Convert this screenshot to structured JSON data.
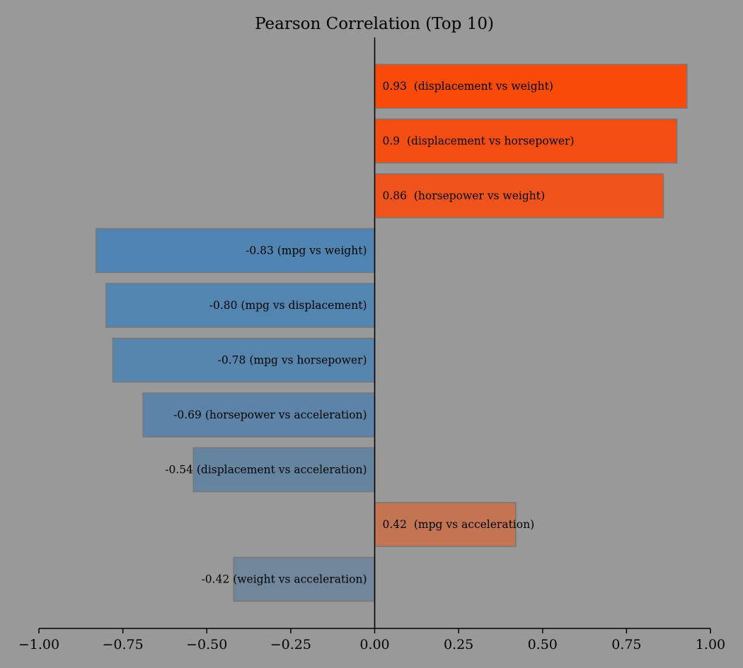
{
  "chart_data": {
    "type": "bar",
    "orientation": "horizontal",
    "title": "Pearson Correlation (Top 10)",
    "xlabel": "",
    "ylabel": "",
    "xlim": [
      -1.0,
      1.0
    ],
    "xticks": [
      -1.0,
      -0.75,
      -0.5,
      -0.25,
      0.0,
      0.25,
      0.5,
      0.75,
      1.0
    ],
    "xtick_labels": [
      "−1.00",
      "−0.75",
      "−0.50",
      "−0.25",
      "0.00",
      "0.25",
      "0.50",
      "0.75",
      "1.00"
    ],
    "grid": false,
    "legend": "none",
    "bars": [
      {
        "value": 0.93,
        "label": "0.93  (displacement vs weight)",
        "color": "#f84a08"
      },
      {
        "value": 0.9,
        "label": "0.9  (displacement vs horsepower)",
        "color": "#f54e12"
      },
      {
        "value": 0.86,
        "label": "0.86  (horsepower vs weight)",
        "color": "#ef541c"
      },
      {
        "value": -0.83,
        "label": "-0.83 (mpg vs weight)",
        "color": "#5085b1"
      },
      {
        "value": -0.8,
        "label": "-0.80 (mpg vs displacement)",
        "color": "#5285b0"
      },
      {
        "value": -0.78,
        "label": "-0.78 (mpg vs horsepower)",
        "color": "#5685ad"
      },
      {
        "value": -0.69,
        "label": "-0.69 (horsepower vs acceleration)",
        "color": "#5b84a8"
      },
      {
        "value": -0.54,
        "label": "-0.54 (displacement vs acceleration)",
        "color": "#6584a0"
      },
      {
        "value": 0.42,
        "label": "0.42  (mpg vs acceleration)",
        "color": "#c27453"
      },
      {
        "value": -0.42,
        "label": "-0.42 (weight vs acceleration)",
        "color": "#70869a"
      }
    ]
  }
}
